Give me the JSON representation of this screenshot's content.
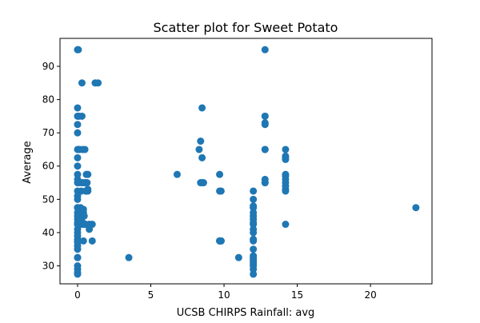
{
  "chart_data": {
    "type": "scatter",
    "title": "Scatter plot for Sweet Potato",
    "xlabel": "UCSB CHIRPS Rainfall: avg",
    "ylabel": "Average",
    "xlim": [
      -1.2,
      24.2
    ],
    "ylim": [
      24.6,
      98.4
    ],
    "xticks": [
      0,
      5,
      10,
      15,
      20
    ],
    "yticks": [
      30,
      40,
      50,
      60,
      70,
      80,
      90
    ],
    "grid": false,
    "marker_color": "#1f77b4",
    "x": [
      0,
      0,
      0,
      0,
      0,
      0,
      0,
      0,
      0,
      0,
      0,
      0,
      0,
      0,
      0,
      0,
      0,
      0,
      0,
      0,
      0,
      0,
      0,
      0,
      0,
      0,
      0,
      0,
      0,
      0,
      0,
      0,
      0,
      0,
      0,
      0,
      0.05,
      0.05,
      0.1,
      0.1,
      0.15,
      0.15,
      0.2,
      0.2,
      0.25,
      0.25,
      0.3,
      0.3,
      0.3,
      0.3,
      0.35,
      0.35,
      0.35,
      0.35,
      0.35,
      0.4,
      0.4,
      0.4,
      0.45,
      0.45,
      0.5,
      0.5,
      0.55,
      0.55,
      0.55,
      0.6,
      0.6,
      0.65,
      0.7,
      0.7,
      0.7,
      0.8,
      0.8,
      1.0,
      1.0,
      1.2,
      1.4,
      3.5,
      6.8,
      8.3,
      8.4,
      8.4,
      8.5,
      8.5,
      8.5,
      8.6,
      9.7,
      9.7,
      9.7,
      9.7,
      9.8,
      9.8,
      9.8,
      11.0,
      12.0,
      12.0,
      12.0,
      12.0,
      12.0,
      12.0,
      12.0,
      12.0,
      12.0,
      12.0,
      12.0,
      12.0,
      12.0,
      12.0,
      12.0,
      12.0,
      12.0,
      12.0,
      12.0,
      12.0,
      12.0,
      12.0,
      12.0,
      12.8,
      12.8,
      12.8,
      12.8,
      12.8,
      12.8,
      12.8,
      12.8,
      12.8,
      12.8,
      14.2,
      14.2,
      14.2,
      14.2,
      14.2,
      14.2,
      14.2,
      14.2,
      14.2,
      14.2,
      14.2,
      14.2,
      23.1
    ],
    "y": [
      95,
      77.5,
      75,
      72.5,
      70,
      65,
      62.5,
      60,
      57.5,
      56,
      55,
      52.5,
      51,
      50,
      47.5,
      46,
      45,
      44,
      43,
      42.5,
      41,
      40,
      39,
      38,
      37.5,
      37,
      36,
      35,
      32.5,
      30,
      29,
      27.5,
      47.5,
      42.5,
      32.5,
      28,
      95,
      65,
      75,
      55,
      65,
      45,
      47.5,
      42.5,
      52.5,
      44,
      85,
      75,
      47,
      55,
      45,
      43,
      42.5,
      55,
      65,
      47,
      46,
      37.5,
      45,
      42.5,
      65,
      55,
      52.5,
      55,
      42.5,
      57.5,
      52.5,
      55,
      53,
      52.5,
      57.5,
      41,
      42.5,
      37.5,
      42.5,
      85,
      85,
      32.5,
      57.5,
      65,
      55,
      67.5,
      77.5,
      62.5,
      55,
      55,
      57.5,
      52.5,
      37.5,
      37.5,
      37.5,
      52.5,
      37.5,
      32.5,
      52.5,
      50,
      47.5,
      45,
      43,
      42.5,
      41,
      40,
      38,
      37.5,
      35,
      32.5,
      32,
      31,
      30,
      29,
      27.5,
      30.5,
      31.5,
      33,
      44,
      46,
      48,
      95,
      75,
      72.5,
      65,
      55,
      55,
      65,
      75,
      73,
      56,
      65,
      62.5,
      62,
      57.5,
      57,
      55,
      53,
      52.5,
      42.5,
      63,
      56,
      54,
      47.5
    ]
  }
}
